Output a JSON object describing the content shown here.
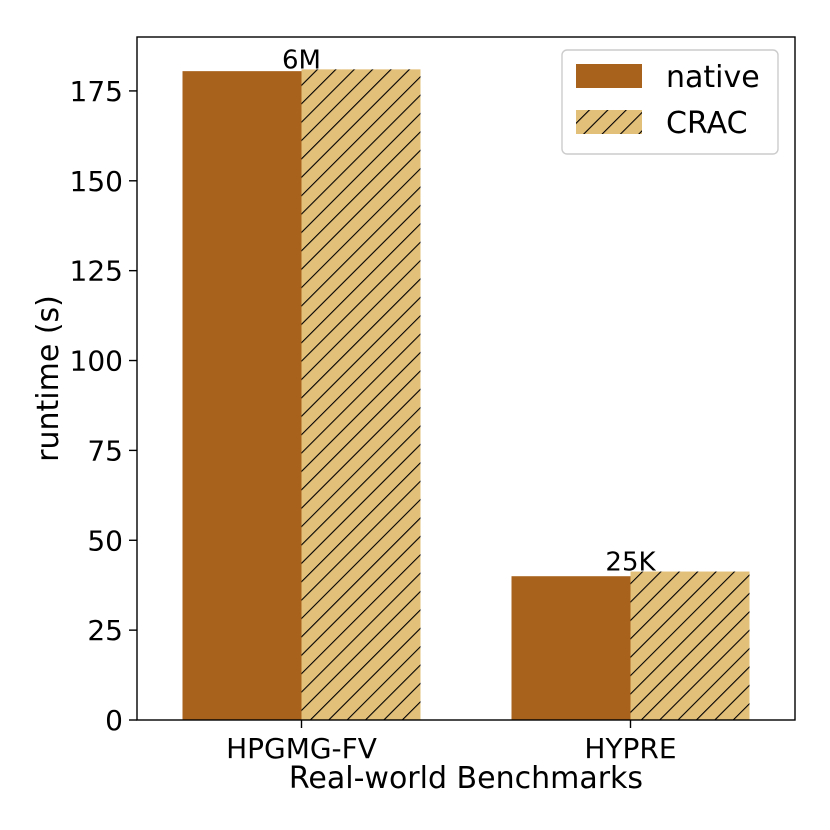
{
  "chart_data": {
    "type": "bar",
    "title": "",
    "xlabel": "Real-world Benchmarks",
    "ylabel": "runtime (s)",
    "ylim": [
      0,
      190
    ],
    "yticks": [
      0,
      25,
      50,
      75,
      100,
      125,
      150,
      175
    ],
    "categories": [
      "HPGMG-FV",
      "HYPRE"
    ],
    "series": [
      {
        "name": "native",
        "values": [
          180.5,
          40.0
        ],
        "color": "#A8621C",
        "hatch": false
      },
      {
        "name": "CRAC",
        "values": [
          181.0,
          41.3
        ],
        "color": "#E3C07A",
        "hatch": true
      }
    ],
    "annotations": [
      {
        "category": "HPGMG-FV",
        "text": "6M"
      },
      {
        "category": "HYPRE",
        "text": "25K"
      }
    ],
    "legend": {
      "position": "top-right"
    },
    "grid": false
  }
}
